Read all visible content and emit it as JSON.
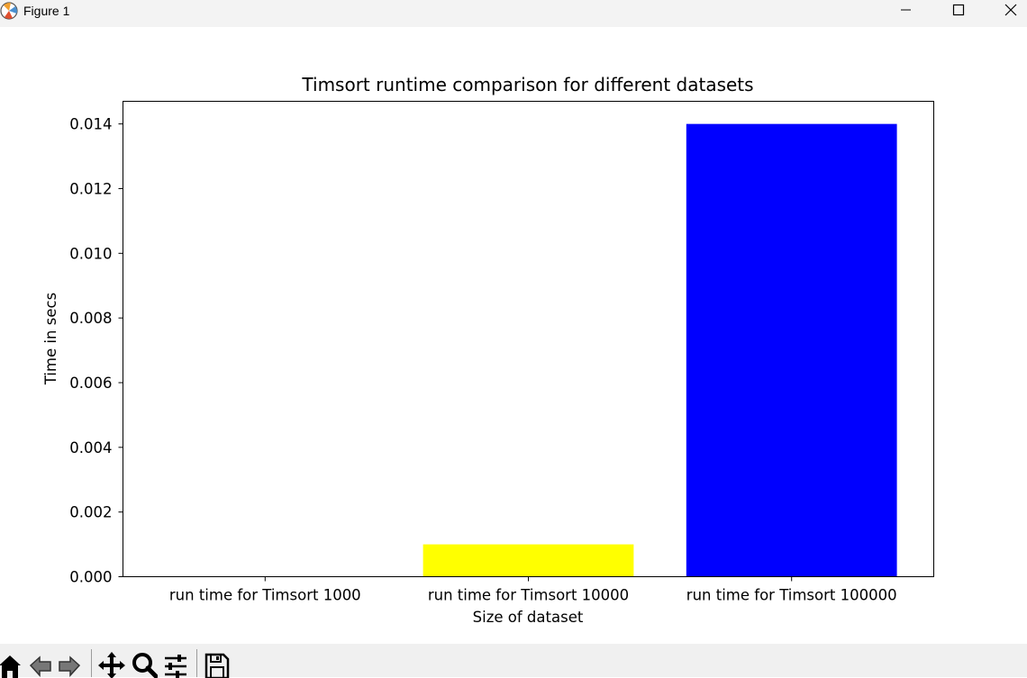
{
  "window": {
    "title": "Figure 1"
  },
  "toolbar": {
    "tools": [
      "home-icon",
      "back-icon",
      "forward-icon",
      "pan-icon",
      "zoom-icon",
      "configure-subplots-icon",
      "save-icon"
    ]
  },
  "chart_data": {
    "type": "bar",
    "title": "Timsort runtime comparison for different datasets",
    "xlabel": "Size of dataset",
    "ylabel": "Time in secs",
    "categories": [
      "run time for Timsort 1000",
      "run time for Timsort 10000",
      "run time for Timsort 100000"
    ],
    "values": [
      0.0,
      0.001,
      0.014
    ],
    "colors": [
      "#ff0000",
      "#ffff00",
      "#0000ff"
    ],
    "ylim": [
      0,
      0.0147
    ],
    "yticks": [
      0.0,
      0.002,
      0.004,
      0.006,
      0.008,
      0.01,
      0.012,
      0.014
    ],
    "ytick_labels": [
      "0.000",
      "0.002",
      "0.004",
      "0.006",
      "0.008",
      "0.010",
      "0.012",
      "0.014"
    ],
    "grid": false,
    "legend": "none"
  }
}
